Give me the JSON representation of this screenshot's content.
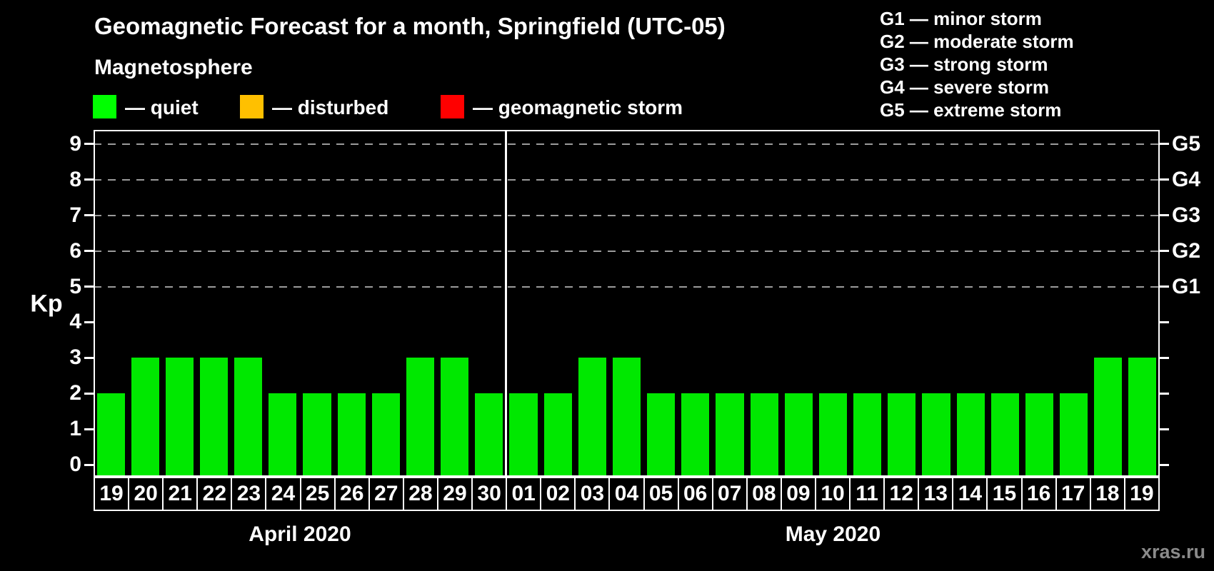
{
  "header": {
    "title": "Geomagnetic Forecast for a month, Springfield (UTC-05)"
  },
  "magnetosphere_legend": {
    "title": "Magnetosphere",
    "items": [
      {
        "name": "quiet",
        "label": "— quiet",
        "color": "#00ff00"
      },
      {
        "name": "disturbed",
        "label": "— disturbed",
        "color": "#ffc000"
      },
      {
        "name": "geomagnetic-storm",
        "label": "— geomagnetic storm",
        "color": "#ff0000"
      }
    ]
  },
  "storm_scale_legend": [
    "G1 — minor storm",
    "G2 — moderate storm",
    "G3 — strong storm",
    "G4 — severe storm",
    "G5 — extreme storm"
  ],
  "watermark": "xras.ru",
  "chart_data": {
    "type": "bar",
    "title": "Geomagnetic Forecast for a month, Springfield (UTC-05)",
    "ylabel": "Kp",
    "ylim": [
      0,
      9
    ],
    "yticks": [
      0,
      1,
      2,
      3,
      4,
      5,
      6,
      7,
      8,
      9
    ],
    "grid": "dashed horizontal lines at Kp 5-9 (G1-G5 levels)",
    "grid_levels_kp": [
      5,
      6,
      7,
      8,
      9
    ],
    "right_axis": [
      {
        "kp": 5,
        "label": "G1"
      },
      {
        "kp": 6,
        "label": "G2"
      },
      {
        "kp": 7,
        "label": "G3"
      },
      {
        "kp": 8,
        "label": "G4"
      },
      {
        "kp": 9,
        "label": "G5"
      }
    ],
    "bar_color": "#00e800",
    "legend_position": "top-left and top-right",
    "months": [
      {
        "label": "April 2020",
        "days": [
          "19",
          "20",
          "21",
          "22",
          "23",
          "24",
          "25",
          "26",
          "27",
          "28",
          "29",
          "30"
        ],
        "values": [
          2,
          3,
          3,
          3,
          3,
          2,
          2,
          2,
          2,
          3,
          3,
          2
        ]
      },
      {
        "label": "May 2020",
        "days": [
          "01",
          "02",
          "03",
          "04",
          "05",
          "06",
          "07",
          "08",
          "09",
          "10",
          "11",
          "12",
          "13",
          "14",
          "15",
          "16",
          "17",
          "18",
          "19"
        ],
        "values": [
          2,
          2,
          3,
          3,
          2,
          2,
          2,
          2,
          2,
          2,
          2,
          2,
          2,
          2,
          2,
          2,
          2,
          3,
          3
        ]
      }
    ]
  }
}
